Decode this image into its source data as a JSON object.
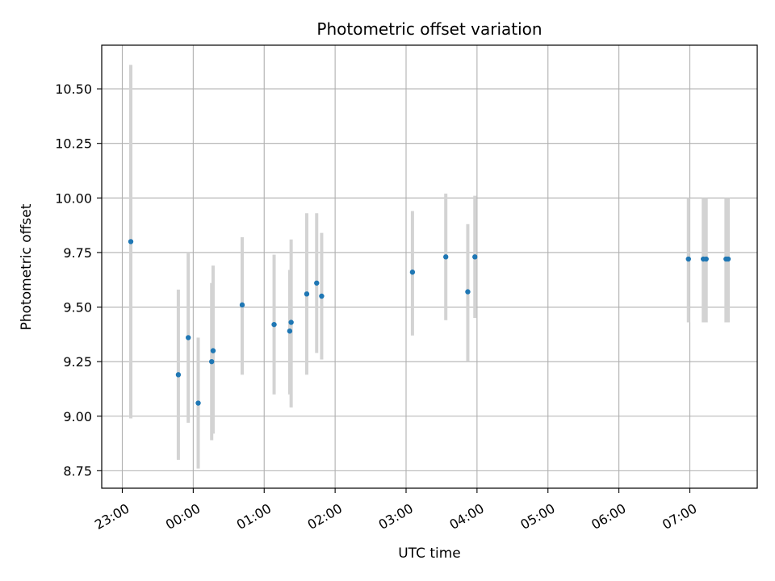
{
  "chart_data": {
    "type": "scatter",
    "title": "Photometric offset variation",
    "xlabel": "UTC time",
    "ylabel": "Photometric offset",
    "grid": true,
    "x_unit": "UTC hours (23:00 on day 1 to 07:00 on day 2)",
    "xlim": [
      22.71,
      31.95
    ],
    "ylim": [
      8.67,
      10.7
    ],
    "x_ticks": [
      {
        "value": 23,
        "label": "23:00"
      },
      {
        "value": 24,
        "label": "00:00"
      },
      {
        "value": 25,
        "label": "01:00"
      },
      {
        "value": 26,
        "label": "02:00"
      },
      {
        "value": 27,
        "label": "03:00"
      },
      {
        "value": 28,
        "label": "04:00"
      },
      {
        "value": 29,
        "label": "05:00"
      },
      {
        "value": 30,
        "label": "06:00"
      },
      {
        "value": 31,
        "label": "07:00"
      }
    ],
    "y_ticks": [
      {
        "value": 8.75,
        "label": "8.75"
      },
      {
        "value": 9.0,
        "label": "9.00"
      },
      {
        "value": 9.25,
        "label": "9.25"
      },
      {
        "value": 9.5,
        "label": "9.50"
      },
      {
        "value": 9.75,
        "label": "9.75"
      },
      {
        "value": 10.0,
        "label": "10.00"
      },
      {
        "value": 10.25,
        "label": "10.25"
      },
      {
        "value": 10.5,
        "label": "10.50"
      }
    ],
    "colors": {
      "points": "#1f77b4",
      "errorbars": "#d3d3d3",
      "grid": "#b0b0b0"
    },
    "points": [
      {
        "x": 23.12,
        "y": 9.8,
        "ylow": 8.99,
        "yhigh": 10.61
      },
      {
        "x": 23.79,
        "y": 9.19,
        "ylow": 8.8,
        "yhigh": 9.58
      },
      {
        "x": 23.93,
        "y": 9.36,
        "ylow": 8.97,
        "yhigh": 9.75
      },
      {
        "x": 24.07,
        "y": 9.06,
        "ylow": 8.76,
        "yhigh": 9.36
      },
      {
        "x": 24.26,
        "y": 9.25,
        "ylow": 8.89,
        "yhigh": 9.61
      },
      {
        "x": 24.28,
        "y": 9.3,
        "ylow": 8.92,
        "yhigh": 9.69
      },
      {
        "x": 24.69,
        "y": 9.51,
        "ylow": 9.19,
        "yhigh": 9.82
      },
      {
        "x": 25.14,
        "y": 9.42,
        "ylow": 9.1,
        "yhigh": 9.74
      },
      {
        "x": 25.36,
        "y": 9.39,
        "ylow": 9.1,
        "yhigh": 9.67
      },
      {
        "x": 25.38,
        "y": 9.43,
        "ylow": 9.04,
        "yhigh": 9.81
      },
      {
        "x": 25.6,
        "y": 9.56,
        "ylow": 9.19,
        "yhigh": 9.93
      },
      {
        "x": 25.74,
        "y": 9.61,
        "ylow": 9.29,
        "yhigh": 9.93
      },
      {
        "x": 25.81,
        "y": 9.55,
        "ylow": 9.26,
        "yhigh": 9.84
      },
      {
        "x": 27.09,
        "y": 9.66,
        "ylow": 9.37,
        "yhigh": 9.94
      },
      {
        "x": 27.56,
        "y": 9.73,
        "ylow": 9.44,
        "yhigh": 10.02
      },
      {
        "x": 27.87,
        "y": 9.57,
        "ylow": 9.25,
        "yhigh": 9.88
      },
      {
        "x": 27.97,
        "y": 9.73,
        "ylow": 9.45,
        "yhigh": 10.01
      },
      {
        "x": 30.98,
        "y": 9.72,
        "ylow": 9.43,
        "yhigh": 10.0
      },
      {
        "x": 31.19,
        "y": 9.72,
        "ylow": 9.43,
        "yhigh": 10.0
      },
      {
        "x": 31.23,
        "y": 9.72,
        "ylow": 9.43,
        "yhigh": 10.0
      },
      {
        "x": 31.51,
        "y": 9.72,
        "ylow": 9.43,
        "yhigh": 10.0
      },
      {
        "x": 31.54,
        "y": 9.72,
        "ylow": 9.43,
        "yhigh": 10.0
      }
    ]
  }
}
